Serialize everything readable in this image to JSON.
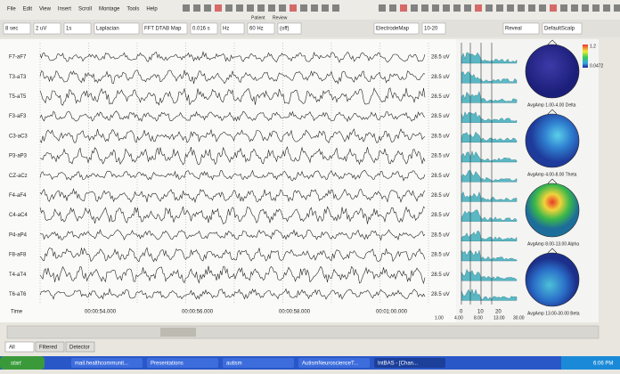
{
  "menu": [
    "File",
    "Edit",
    "View",
    "Insert",
    "Scroll",
    "Montage",
    "Tools",
    "Help"
  ],
  "toolbar": {
    "patient": "Patient",
    "review": "Review"
  },
  "controls": [
    "8 sec",
    "2 uV",
    "1s",
    "Laplacian",
    "FFT DTAB Map",
    "0.016 s",
    "Hz",
    "60 Hz",
    "(off)",
    "ElectrodeMap",
    "10-20",
    "Reveal",
    "DefaultScalp"
  ],
  "channels": [
    "F7-aF7",
    "T3-aT3",
    "T5-aT5",
    "F3-aF3",
    "C3-aC3",
    "P3-aP3",
    "CZ-aCz",
    "F4-aF4",
    "C4-aC4",
    "P4-aP4",
    "F8-aF8",
    "T4-aT4",
    "T6-aT6"
  ],
  "time_label": "Time",
  "scale_label": "28.5 uV",
  "time_ticks": [
    "00:00:54.000",
    "00:00:56.000",
    "00:00:58.000",
    "00:01:00.000"
  ],
  "spectrum_axis": [
    "0",
    "10",
    "20"
  ],
  "freq_axis": [
    "1.00",
    "4.00",
    "8.00",
    "13.00",
    "30.00"
  ],
  "colorbar": [
    "1.2",
    "0.0472"
  ],
  "maps": [
    "AvgAmp 1.00-4.00 Delta",
    "AvgAmp 4.00-8.00 Theta",
    "AvgAmp 8.00-13.00 Alpha",
    "AvgAmp 13.00-30.00 Beta"
  ],
  "tabs": [
    "All",
    "Filtered",
    "Detector"
  ],
  "taskbar": {
    "start": "start",
    "items": [
      "mail.healthcommunit...",
      "Presentations",
      "autism",
      "AutismNeuroscienceT...",
      "IntBAS - [Chan..."
    ],
    "clock": "6:06 PM"
  }
}
